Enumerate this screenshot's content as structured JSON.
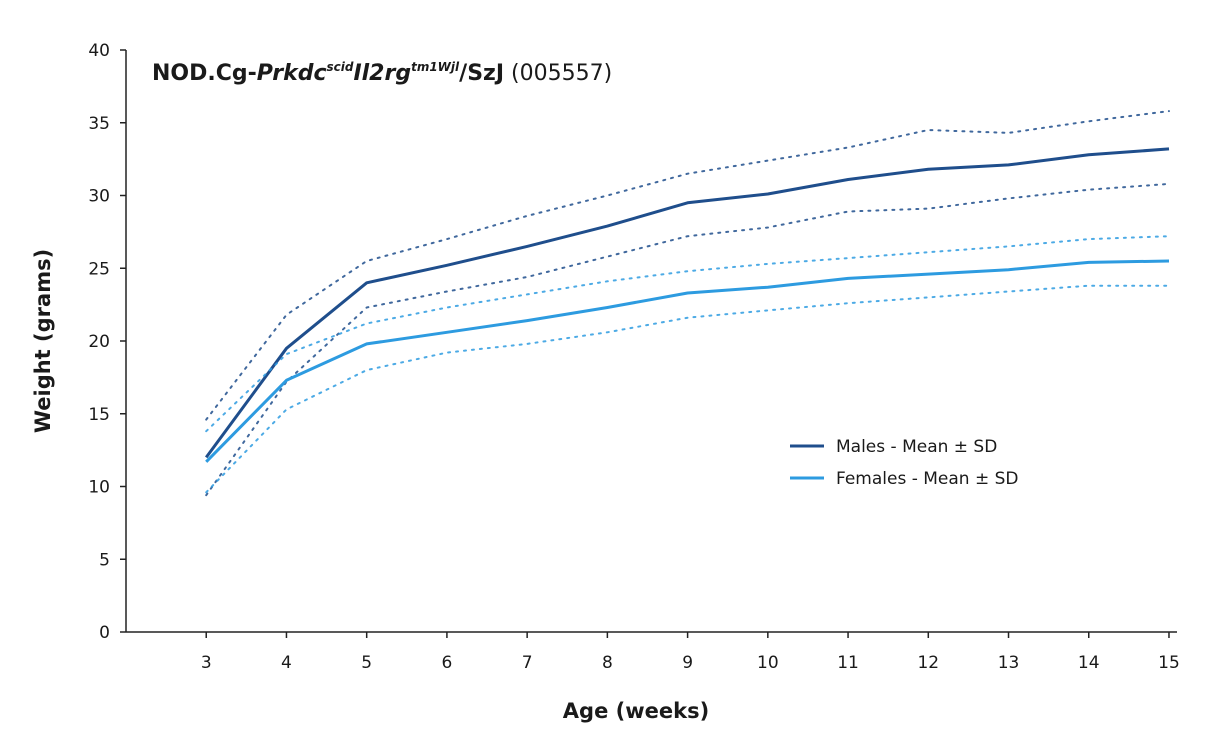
{
  "chart_data": {
    "type": "line",
    "title": {
      "main_bold": "NOD.Cg-",
      "italic_1": "Prkdc",
      "sup_1": "scid",
      "italic_2": "Il2rg",
      "sup_2": "tm1Wjl",
      "bold_tail": "/SzJ",
      "regular_tail": " (005557)"
    },
    "xlabel": "Age (weeks)",
    "ylabel": "Weight (grams)",
    "x": [
      3,
      4,
      5,
      6,
      7,
      8,
      9,
      10,
      11,
      12,
      13,
      14,
      15
    ],
    "xlim": [
      2,
      15.1
    ],
    "ylim": [
      0,
      40
    ],
    "yticks": [
      0,
      5,
      10,
      15,
      20,
      25,
      30,
      35,
      40
    ],
    "grid": false,
    "legend_position": "right-middle",
    "series": [
      {
        "name": "Males - Mean ± SD",
        "color": "#1f4e8c",
        "mean": [
          12.0,
          19.5,
          24.0,
          25.2,
          26.5,
          27.9,
          29.5,
          30.1,
          31.1,
          31.8,
          32.1,
          32.8,
          33.2
        ],
        "upper": [
          14.6,
          21.8,
          25.5,
          27.0,
          28.6,
          30.0,
          31.5,
          32.4,
          33.3,
          34.5,
          34.3,
          35.1,
          35.8
        ],
        "lower": [
          9.4,
          17.2,
          22.3,
          23.4,
          24.4,
          25.8,
          27.2,
          27.8,
          28.9,
          29.1,
          29.8,
          30.4,
          30.8
        ]
      },
      {
        "name": "Females - Mean ± SD",
        "color": "#2d9be0",
        "mean": [
          11.7,
          17.3,
          19.8,
          20.6,
          21.4,
          22.3,
          23.3,
          23.7,
          24.3,
          24.6,
          24.9,
          25.4,
          25.5
        ],
        "upper": [
          13.8,
          19.1,
          21.2,
          22.3,
          23.2,
          24.1,
          24.8,
          25.3,
          25.7,
          26.1,
          26.5,
          27.0,
          27.2
        ],
        "lower": [
          9.6,
          15.3,
          18.0,
          19.2,
          19.8,
          20.6,
          21.6,
          22.1,
          22.6,
          23.0,
          23.4,
          23.8,
          23.8
        ]
      }
    ]
  }
}
